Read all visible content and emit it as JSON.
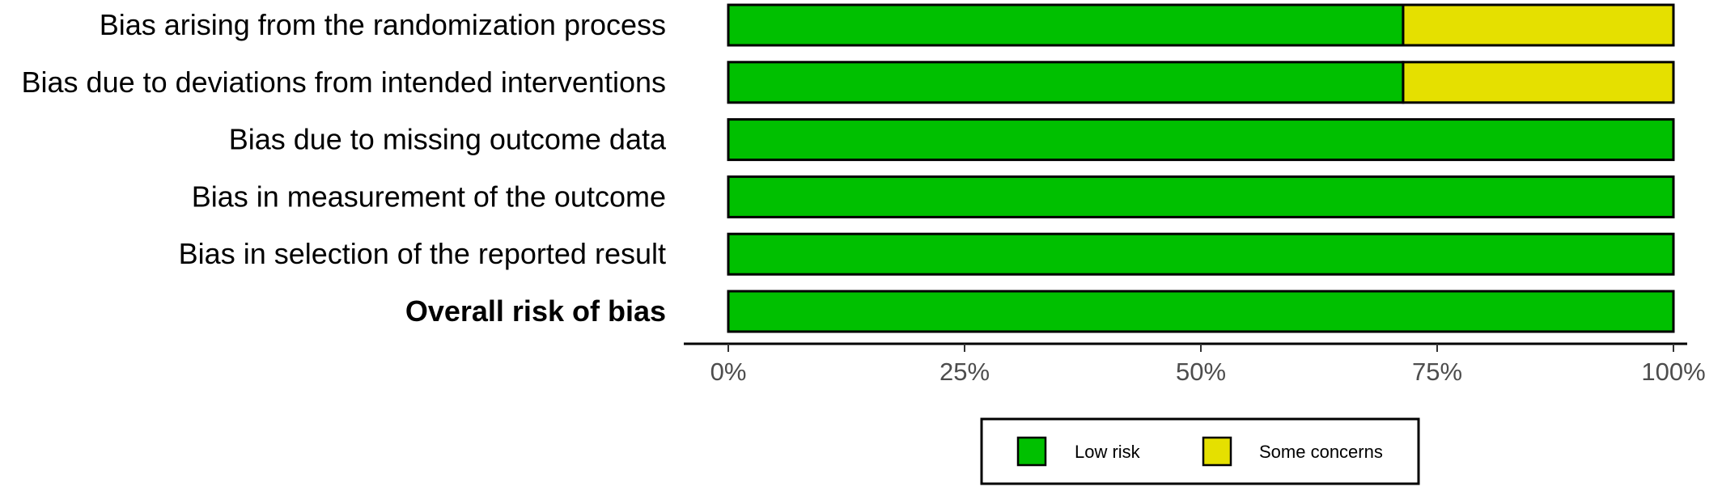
{
  "chart_data": {
    "type": "bar",
    "orientation": "horizontal",
    "stacked": true,
    "categories": [
      "Bias arising from the randomization process",
      "Bias due to deviations from intended interventions",
      "Bias due to missing outcome data",
      "Bias in measurement of the outcome",
      "Bias in selection of the reported result",
      "Overall risk of bias"
    ],
    "emphasized_categories": [
      "Overall risk of bias"
    ],
    "series": [
      {
        "name": "Low risk",
        "color": "#00c000",
        "values": [
          71.4,
          71.4,
          100,
          100,
          100,
          100
        ]
      },
      {
        "name": "Some concerns",
        "color": "#e5e000",
        "values": [
          28.6,
          28.6,
          0,
          0,
          0,
          0
        ]
      }
    ],
    "xlim": [
      0,
      100
    ],
    "xticks": [
      0,
      25,
      50,
      75,
      100
    ],
    "xtick_labels": [
      "0%",
      "25%",
      "50%",
      "75%",
      "100%"
    ],
    "xlabel": "",
    "ylabel": "",
    "title": "",
    "grid": false,
    "legend_position": "bottom"
  }
}
